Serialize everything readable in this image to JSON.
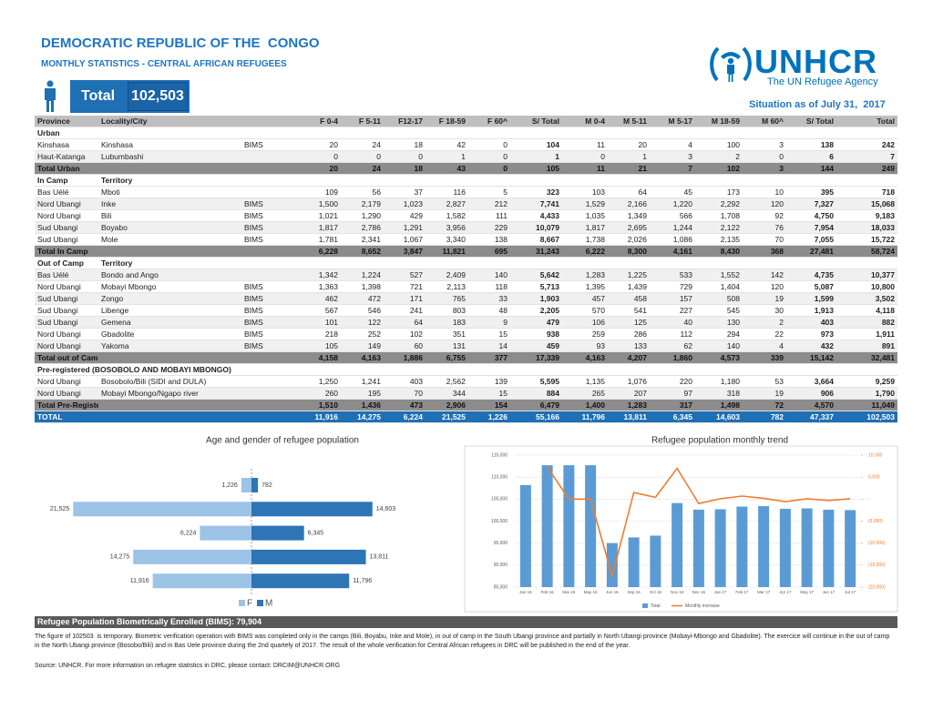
{
  "header": {
    "title": "DEMOCRATIC REPUBLIC OF THE  CONGO",
    "subtitle": "MONTHLY STATISTICS - CENTRAL AFRICAN REFUGEES",
    "total_label": "Total",
    "total_value": "102,503",
    "logo_name": "UNHCR",
    "logo_tagline": "The UN Refugee Agency",
    "situation": "Situation as of July 31,  2017"
  },
  "table": {
    "columns": [
      "Province",
      "Locality/City",
      null,
      "F 0-4",
      "F 5-11",
      "F12-17",
      "F 18-59",
      "F 60^",
      "S/ Total",
      "M 0-4",
      "M 5-11",
      "M 5-17",
      "M 18-59",
      "M 60^",
      "S/ Total",
      "Total"
    ],
    "groups": [
      {
        "heading": [
          "Urban"
        ],
        "rows": [
          [
            "Kinshasa",
            "Kinshasa",
            "BIMS",
            "20",
            "24",
            "18",
            "42",
            "0",
            "104",
            "11",
            "20",
            "4",
            "100",
            "3",
            "138",
            "242"
          ],
          [
            "Haut-Katanga",
            "Lubumbashi",
            null,
            "0",
            "0",
            "0",
            "1",
            "0",
            "1",
            "0",
            "1",
            "3",
            "2",
            "0",
            "6",
            "7"
          ]
        ],
        "total": [
          "Total Urban",
          null,
          null,
          "20",
          "24",
          "18",
          "43",
          "0",
          "105",
          "11",
          "21",
          "7",
          "102",
          "3",
          "144",
          "249"
        ]
      },
      {
        "heading": [
          "In Camp",
          "Territory"
        ],
        "rows": [
          [
            "Bas Uélé",
            "Mboti",
            null,
            "109",
            "56",
            "37",
            "116",
            "5",
            "323",
            "103",
            "64",
            "45",
            "173",
            "10",
            "395",
            "718"
          ],
          [
            "Nord Ubangi",
            "Inke",
            "BIMS",
            "1,500",
            "2,179",
            "1,023",
            "2,827",
            "212",
            "7,741",
            "1,529",
            "2,166",
            "1,220",
            "2,292",
            "120",
            "7,327",
            "15,068"
          ],
          [
            "Nord Ubangi",
            "Bili",
            "BIMS",
            "1,021",
            "1,290",
            "429",
            "1,582",
            "111",
            "4,433",
            "1,035",
            "1,349",
            "566",
            "1,708",
            "92",
            "4,750",
            "9,183"
          ],
          [
            "Sud Ubangi",
            "Boyabo",
            "BIMS",
            "1,817",
            "2,786",
            "1,291",
            "3,956",
            "229",
            "10,079",
            "1,817",
            "2,695",
            "1,244",
            "2,122",
            "76",
            "7,954",
            "18,033"
          ],
          [
            "Sud Ubangi",
            "Mole",
            "BIMS",
            "1,781",
            "2,341",
            "1,067",
            "3,340",
            "138",
            "8,667",
            "1,738",
            "2,026",
            "1,086",
            "2,135",
            "70",
            "7,055",
            "15,722"
          ]
        ],
        "total": [
          "Total  In Camp",
          null,
          null,
          "6,228",
          "8,652",
          "3,847",
          "11,821",
          "695",
          "31,243",
          "6,222",
          "8,300",
          "4,161",
          "8,430",
          "368",
          "27,481",
          "58,724"
        ]
      },
      {
        "heading": [
          "Out of Camp",
          "Territory"
        ],
        "rows": [
          [
            "Bas Uélé",
            "Bondo and Ango",
            null,
            "1,342",
            "1,224",
            "527",
            "2,409",
            "140",
            "5,642",
            "1,283",
            "1,225",
            "533",
            "1,552",
            "142",
            "4,735",
            "10,377"
          ],
          [
            "Nord Ubangi",
            "Mobayi Mbongo",
            "BIMS",
            "1,363",
            "1,398",
            "721",
            "2,113",
            "118",
            "5,713",
            "1,395",
            "1,439",
            "729",
            "1,404",
            "120",
            "5,087",
            "10,800"
          ],
          [
            "Sud Ubangi",
            "Zongo",
            "BIMS",
            "462",
            "472",
            "171",
            "765",
            "33",
            "1,903",
            "457",
            "458",
            "157",
            "508",
            "19",
            "1,599",
            "3,502"
          ],
          [
            "Sud Ubangi",
            "Libenge",
            "BIMS",
            "567",
            "546",
            "241",
            "803",
            "48",
            "2,205",
            "570",
            "541",
            "227",
            "545",
            "30",
            "1,913",
            "4,118"
          ],
          [
            "Sud Ubangi",
            "Gemena",
            "BIMS",
            "101",
            "122",
            "64",
            "183",
            "9",
            "479",
            "106",
            "125",
            "40",
            "130",
            "2",
            "403",
            "882"
          ],
          [
            "Nord Ubangi",
            "Gbadolite",
            "BIMS",
            "218",
            "252",
            "102",
            "351",
            "15",
            "938",
            "259",
            "286",
            "112",
            "294",
            "22",
            "973",
            "1,911"
          ],
          [
            "Nord Ubangi",
            "Yakoma",
            "BIMS",
            "105",
            "149",
            "60",
            "131",
            "14",
            "459",
            "93",
            "133",
            "62",
            "140",
            "4",
            "432",
            "891"
          ]
        ],
        "total": [
          "Total out of Camps",
          null,
          null,
          "4,158",
          "4,163",
          "1,886",
          "6,755",
          "377",
          "17,339",
          "4,163",
          "4,207",
          "1,860",
          "4,573",
          "339",
          "15,142",
          "32,481"
        ]
      },
      {
        "heading": [
          "Pre-registered (BOSOBOLO AND MOBAYI MBONGO)"
        ],
        "rows": [
          [
            "Nord Ubangi",
            "Bosobolo/Bili (SIDI and DULA)",
            null,
            "1,250",
            "1,241",
            "403",
            "2,562",
            "139",
            "5,595",
            "1,135",
            "1,076",
            "220",
            "1,180",
            "53",
            "3,664",
            "9,259"
          ],
          [
            "Nord Ubangi",
            "Mobayi Mbongo/Ngapo river",
            null,
            "260",
            "195",
            "70",
            "344",
            "15",
            "884",
            "265",
            "207",
            "97",
            "318",
            "19",
            "906",
            "1,790"
          ]
        ],
        "total": [
          "Total Pre-Registered",
          null,
          null,
          "1,510",
          "1,436",
          "473",
          "2,906",
          "154",
          "6,479",
          "1,400",
          "1,283",
          "317",
          "1,498",
          "72",
          "4,570",
          "11,049"
        ]
      }
    ],
    "grand_total": [
      "TOTAL",
      null,
      null,
      "11,916",
      "14,275",
      "6,224",
      "21,525",
      "1,226",
      "55,166",
      "11,796",
      "13,811",
      "6,345",
      "14,603",
      "782",
      "47,337",
      "102,503"
    ]
  },
  "chart_data": [
    {
      "type": "population_pyramid",
      "title": "Age and gender of refugee population",
      "series": [
        {
          "name": "F",
          "color": "#9dc3e6",
          "values": [
            1226,
            21525,
            6224,
            14275,
            11916
          ],
          "value_labels": [
            "1,226",
            "21,525",
            "6,224",
            "14,275",
            "11,916"
          ]
        },
        {
          "name": "M",
          "color": "#2e75b6",
          "values": [
            782,
            14603,
            6345,
            13811,
            11796
          ],
          "value_labels": [
            "782",
            "14,603",
            "6,345",
            "13,811",
            "11,796"
          ]
        }
      ],
      "xlim": [
        0,
        22000
      ]
    },
    {
      "type": "bar_line",
      "title": "Refugee population monthly trend",
      "categories": [
        "Jan 16",
        "Feb 16",
        "Mar 16",
        "May 16",
        "Jun 16",
        "Sep 16",
        "Oct 16",
        "Nov 16",
        "Dec 16",
        "Jan 17",
        "Feb 17",
        "Mar 17",
        "Apr 17",
        "May 17",
        "Jun 17",
        "Jul 17"
      ],
      "series": [
        {
          "name": "Total",
          "type": "bar",
          "color": "#5b9bd5",
          "values": [
            108200,
            112700,
            112700,
            112700,
            95000,
            96300,
            96700,
            104100,
            102600,
            102700,
            103300,
            103400,
            102800,
            102900,
            102600,
            102503
          ]
        },
        {
          "name": "Monthly increase",
          "type": "line",
          "axis": "y2",
          "color": "#ed7d31",
          "values": [
            null,
            7300,
            0,
            0,
            -17500,
            1500,
            400,
            7000,
            -1000,
            100,
            700,
            200,
            -600,
            100,
            -300,
            100
          ]
        }
      ],
      "ylim": [
        85000,
        115000
      ],
      "yticks": [
        {
          "value": 85000,
          "label": "85,000"
        },
        {
          "value": 90000,
          "label": "90,000"
        },
        {
          "value": 95000,
          "label": "95,000"
        },
        {
          "value": 100000,
          "label": "100,000"
        },
        {
          "value": 105000,
          "label": "105,000"
        },
        {
          "value": 110000,
          "label": "110,000"
        },
        {
          "value": 115000,
          "label": "115,000"
        }
      ],
      "y2lim": [
        -20000,
        10000
      ],
      "y2ticks": [
        {
          "value": -20000,
          "label": "(20,000)"
        },
        {
          "value": -15000,
          "label": "(15,000)"
        },
        {
          "value": -10000,
          "label": "(10,000)"
        },
        {
          "value": -5000,
          "label": "(5,000)"
        },
        {
          "value": 0,
          "label": "-"
        },
        {
          "value": 5000,
          "label": "5,000"
        },
        {
          "value": 10000,
          "label": "10,000"
        }
      ],
      "grid": true
    }
  ],
  "footer": {
    "bims": "Refugee Population Biometrically Enrolled (BIMS): 79,904",
    "note": "The figure of 102503  is temporary. Biometric verification operation with BIMS was completed only in the camps (Bili, Boyabu, Inke and Mole), in out of camp in the South Ubangi province and partially in North Ubangi province (Mobayi-Mbongo and Gbadolite). The exercice will continue in the out of camp in the North Ubangi province (Bosobo/Bili) and in Bas Uele province during the 2nd quartely of 2017. The result of the whole verification for Central African refugees in DRC will be published in the end of the year.",
    "source": "Source: UNHCR. For more information on refugee statistics in DRC, please contact: DRCIM@UNHCR.ORG"
  }
}
